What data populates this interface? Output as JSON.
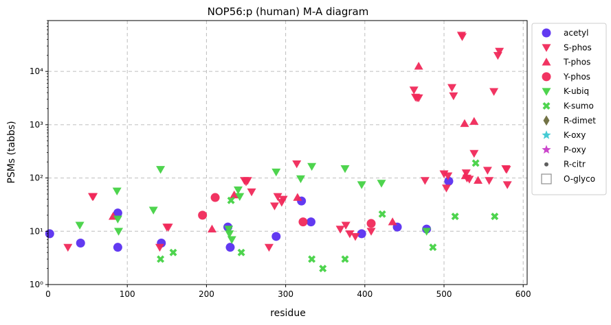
{
  "chart_data": {
    "type": "scatter",
    "title": "NOP56:p (human) M-A diagram",
    "xlabel": "residue",
    "ylabel": "PSMs (tabbs)",
    "xlim": [
      0,
      605
    ],
    "ylim": [
      1,
      90000
    ],
    "yscale": "log",
    "grid": true,
    "legend_position": "outside-right",
    "x_ticks": [
      0,
      100,
      200,
      300,
      400,
      500,
      600
    ],
    "y_ticks": [
      {
        "value": 1,
        "label": "10⁰"
      },
      {
        "value": 10,
        "label": "10¹"
      },
      {
        "value": 100,
        "label": "10²"
      },
      {
        "value": 1000,
        "label": "10³"
      },
      {
        "value": 10000,
        "label": "10⁴"
      }
    ],
    "series": [
      {
        "name": "acetyl",
        "marker": "circle",
        "color": "#5a2ff0",
        "points": [
          [
            2,
            9
          ],
          [
            41,
            6
          ],
          [
            88,
            22
          ],
          [
            88,
            5
          ],
          [
            143,
            6
          ],
          [
            227,
            12
          ],
          [
            230,
            5
          ],
          [
            288,
            8
          ],
          [
            320,
            37
          ],
          [
            332,
            15
          ],
          [
            396,
            9
          ],
          [
            441,
            12
          ],
          [
            478,
            11
          ],
          [
            506,
            87
          ]
        ]
      },
      {
        "name": "S-phos",
        "marker": "triangle-down",
        "color": "#f0295a",
        "points": [
          [
            25,
            5
          ],
          [
            56,
            45
          ],
          [
            57,
            45
          ],
          [
            141,
            5
          ],
          [
            150,
            12
          ],
          [
            152,
            12
          ],
          [
            248,
            90
          ],
          [
            250,
            85
          ],
          [
            252,
            90
          ],
          [
            257,
            55
          ],
          [
            279,
            5
          ],
          [
            286,
            30
          ],
          [
            290,
            45
          ],
          [
            295,
            35
          ],
          [
            297,
            40
          ],
          [
            314,
            185
          ],
          [
            369,
            11
          ],
          [
            376,
            13
          ],
          [
            381,
            9
          ],
          [
            388,
            8
          ],
          [
            408,
            10
          ],
          [
            462,
            4500
          ],
          [
            464,
            3300
          ],
          [
            466,
            3200
          ],
          [
            468,
            3200
          ],
          [
            476,
            90
          ],
          [
            500,
            120
          ],
          [
            503,
            65
          ],
          [
            505,
            110
          ],
          [
            510,
            5000
          ],
          [
            512,
            3500
          ],
          [
            522,
            48000
          ],
          [
            523,
            45000
          ],
          [
            528,
            125
          ],
          [
            529,
            100
          ],
          [
            532,
            95
          ],
          [
            538,
            290
          ],
          [
            555,
            140
          ],
          [
            557,
            90
          ],
          [
            563,
            4200
          ],
          [
            568,
            20000
          ],
          [
            570,
            24000
          ],
          [
            578,
            150
          ],
          [
            579,
            145
          ],
          [
            580,
            75
          ]
        ]
      },
      {
        "name": "T-phos",
        "marker": "triangle-up",
        "color": "#f0295a",
        "points": [
          [
            82,
            19
          ],
          [
            207,
            11
          ],
          [
            235,
            48
          ],
          [
            315,
            43
          ],
          [
            435,
            15
          ],
          [
            468,
            12500
          ],
          [
            526,
            1050
          ],
          [
            527,
            110
          ],
          [
            538,
            1150
          ],
          [
            543,
            90
          ]
        ]
      },
      {
        "name": "Y-phos",
        "marker": "circle",
        "color": "#f0295a",
        "points": [
          [
            195,
            20
          ],
          [
            211,
            43
          ],
          [
            322,
            15
          ],
          [
            408,
            14
          ]
        ]
      },
      {
        "name": "K-ubiq",
        "marker": "triangle-down",
        "color": "#44d244",
        "points": [
          [
            40,
            13
          ],
          [
            87,
            57
          ],
          [
            88,
            17
          ],
          [
            89,
            10
          ],
          [
            133,
            25
          ],
          [
            142,
            145
          ],
          [
            228,
            11
          ],
          [
            229,
            9
          ],
          [
            232,
            7
          ],
          [
            240,
            60
          ],
          [
            242,
            45
          ],
          [
            288,
            130
          ],
          [
            319,
            97
          ],
          [
            333,
            165
          ],
          [
            375,
            150
          ],
          [
            396,
            75
          ],
          [
            421,
            80
          ],
          [
            478,
            10
          ]
        ]
      },
      {
        "name": "K-sumo",
        "marker": "x",
        "color": "#44d244",
        "points": [
          [
            142,
            3
          ],
          [
            158,
            4
          ],
          [
            231,
            38
          ],
          [
            244,
            4
          ],
          [
            333,
            3
          ],
          [
            347,
            2
          ],
          [
            375,
            3
          ],
          [
            422,
            21
          ],
          [
            486,
            5
          ],
          [
            514,
            19
          ],
          [
            540,
            190
          ],
          [
            564,
            19
          ]
        ]
      },
      {
        "name": "R-dimet",
        "marker": "diamond",
        "color": "#6b6b3c",
        "points": []
      },
      {
        "name": "K-oxy",
        "marker": "star",
        "color": "#3cc8d2",
        "points": []
      },
      {
        "name": "P-oxy",
        "marker": "star",
        "color": "#c83cc8",
        "points": []
      },
      {
        "name": "R-citr",
        "marker": "dot",
        "color": "#555555",
        "points": []
      },
      {
        "name": "O-glyco",
        "marker": "square-open",
        "color": "#888888",
        "points": []
      }
    ]
  }
}
